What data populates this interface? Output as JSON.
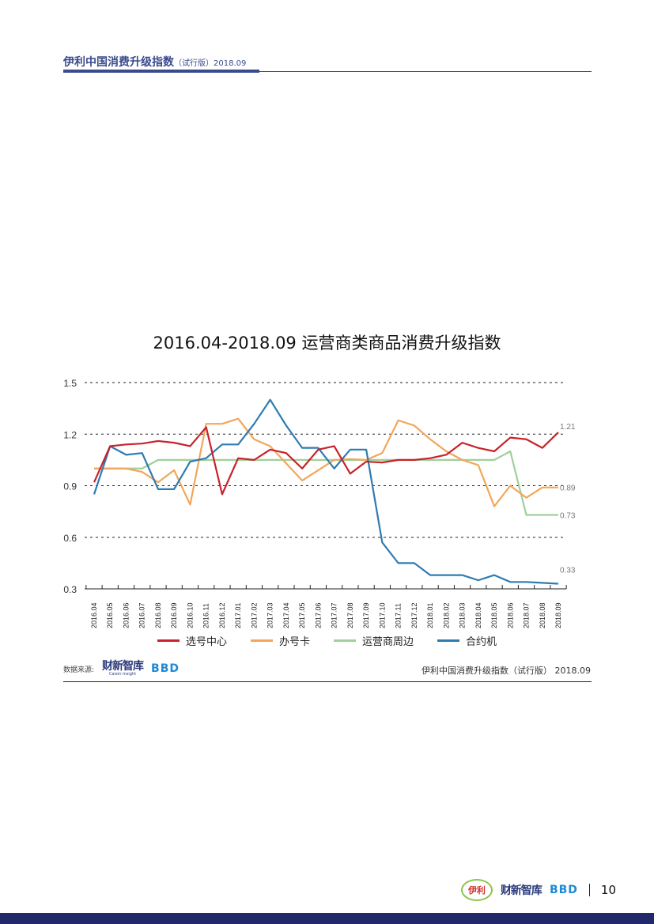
{
  "header": {
    "title": "伊利中国消费升级指数",
    "subtitle": "（试行版）2018.09"
  },
  "chart_data": {
    "type": "line",
    "title": "2016.04-2018.09 运营商类商品消费升级指数",
    "xlabel": "",
    "ylabel": "",
    "ylim": [
      0.3,
      1.5
    ],
    "yticks": [
      "1.5",
      "1.2",
      "0.9",
      "0.6",
      "0.3"
    ],
    "grid": true,
    "legend_position": "bottom",
    "categories": [
      "2016.04",
      "2016.05",
      "2016.06",
      "2016.07",
      "2016.08",
      "2016.09",
      "2016.10",
      "2016.11",
      "2016.12",
      "2017.01",
      "2017.02",
      "2017.03",
      "2017.04",
      "2017.05",
      "2017.06",
      "2017.07",
      "2017.08",
      "2017.09",
      "2017.10",
      "2017.11",
      "2017.12",
      "2018.01",
      "2018.02",
      "2018.03",
      "2018.04",
      "2018.05",
      "2018.06",
      "2018.07",
      "2018.08",
      "2018.09"
    ],
    "series": [
      {
        "name": "选号中心",
        "color": "#c8222a",
        "end_label": "1.21",
        "values": [
          0.92,
          1.13,
          1.14,
          1.145,
          1.16,
          1.15,
          1.13,
          1.24,
          0.85,
          1.06,
          1.05,
          1.11,
          1.09,
          1.0,
          1.11,
          1.13,
          0.97,
          1.04,
          1.035,
          1.05,
          1.05,
          1.06,
          1.08,
          1.15,
          1.12,
          1.1,
          1.18,
          1.17,
          1.12,
          1.21
        ]
      },
      {
        "name": "办号卡",
        "color": "#f2a65a",
        "end_label": "0.89",
        "values": [
          1.0,
          1.0,
          1.0,
          0.98,
          0.92,
          0.99,
          0.79,
          1.26,
          1.26,
          1.29,
          1.17,
          1.13,
          1.03,
          0.93,
          0.99,
          1.05,
          1.055,
          1.05,
          1.09,
          1.28,
          1.25,
          1.17,
          1.1,
          1.05,
          1.02,
          0.78,
          0.9,
          0.83,
          0.89,
          0.89
        ]
      },
      {
        "name": "运营商周边",
        "color": "#9fd09a",
        "end_label": "0.73",
        "values": [
          1.0,
          1.0,
          1.0,
          1.0,
          1.05,
          1.05,
          1.05,
          1.05,
          1.05,
          1.05,
          1.05,
          1.05,
          1.05,
          1.05,
          1.05,
          1.05,
          1.05,
          1.05,
          1.05,
          1.05,
          1.05,
          1.05,
          1.05,
          1.05,
          1.05,
          1.05,
          1.1,
          0.73,
          0.73,
          0.73
        ]
      },
      {
        "name": "合约机",
        "color": "#2f7bb0",
        "end_label": "0.33",
        "values": [
          0.85,
          1.13,
          1.08,
          1.09,
          0.88,
          0.88,
          1.04,
          1.06,
          1.14,
          1.14,
          1.26,
          1.4,
          1.25,
          1.12,
          1.12,
          1.0,
          1.11,
          1.11,
          0.57,
          0.45,
          0.45,
          0.38,
          0.38,
          0.38,
          0.35,
          0.38,
          0.34,
          0.34,
          0.335,
          0.33
        ]
      }
    ]
  },
  "source": {
    "label": "数据来源:",
    "logo1": "财新智库",
    "logo1_sub": "Caixin Insight",
    "logo2": "BBD"
  },
  "source_right": "伊利中国消费升级指数（试行版） 2018.09",
  "footer": {
    "logo_yili": "伊利",
    "logo_caixin": "财新智库",
    "logo_bbd": "BBD",
    "page_number": "10"
  },
  "colors": {
    "brand": "#3a4a8c",
    "bottom_bar": "#22296a"
  }
}
